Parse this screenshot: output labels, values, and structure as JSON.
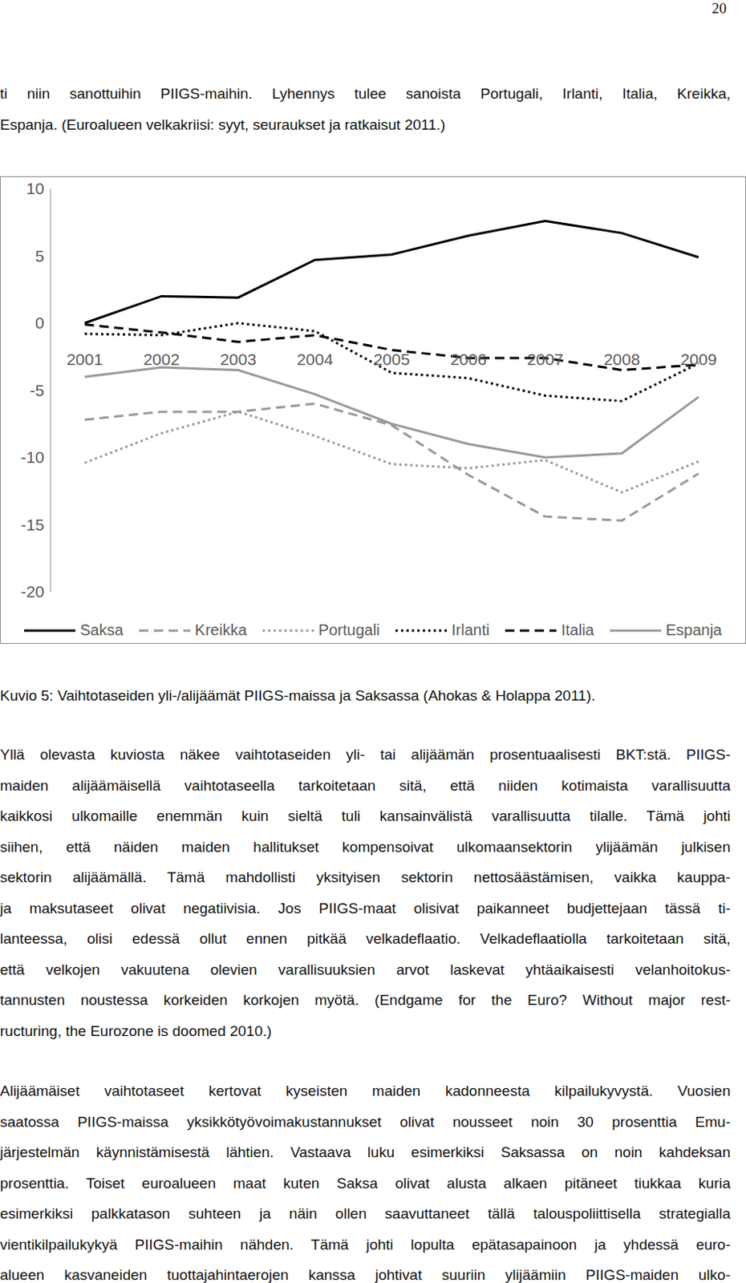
{
  "page_number": "20",
  "intro": [
    "ti niin sanottuihin PIIGS-maihin. Lyhennys tulee sanoista Portugali, Irlanti, Italia, Kreikka,",
    "Espanja. (Euroalueen velkakriisi: syyt, seuraukset ja ratkaisut 2011.)"
  ],
  "chart_data": {
    "type": "line",
    "categories": [
      "2001",
      "2002",
      "2003",
      "2004",
      "2005",
      "2006",
      "2007",
      "2008",
      "2009"
    ],
    "ylim": [
      -20,
      10
    ],
    "yticks": [
      -20,
      -15,
      -10,
      -5,
      0,
      5,
      10
    ],
    "grid": false,
    "legend": "bottom",
    "series": [
      {
        "name": "Saksa",
        "color": "#000000",
        "line_style": "solid",
        "values": [
          0,
          2.0,
          1.9,
          4.7,
          5.1,
          6.5,
          7.6,
          6.7,
          4.9
        ]
      },
      {
        "name": "Kreikka",
        "color": "#999999",
        "line_style": "dashed",
        "values": [
          -7.2,
          -6.6,
          -6.6,
          -6.0,
          -7.6,
          -11.3,
          -14.4,
          -14.7,
          -11.2
        ]
      },
      {
        "name": "Portugali",
        "color": "#999999",
        "line_style": "dotted",
        "values": [
          -10.4,
          -8.2,
          -6.6,
          -8.4,
          -10.5,
          -10.8,
          -10.2,
          -12.6,
          -10.3
        ]
      },
      {
        "name": "Irlanti",
        "color": "#000000",
        "line_style": "dotted",
        "values": [
          -0.8,
          -0.9,
          0.0,
          -0.6,
          -3.7,
          -4.1,
          -5.4,
          -5.8,
          -3.0
        ]
      },
      {
        "name": "Italia",
        "color": "#000000",
        "line_style": "dashed",
        "values": [
          -0.1,
          -0.7,
          -1.4,
          -0.9,
          -2.0,
          -2.6,
          -2.6,
          -3.5,
          -3.1
        ]
      },
      {
        "name": "Espanja",
        "color": "#999999",
        "line_style": "solid",
        "values": [
          -4.0,
          -3.3,
          -3.5,
          -5.3,
          -7.5,
          -9.0,
          -10.0,
          -9.7,
          -5.5
        ]
      }
    ]
  },
  "caption": "Kuvio 5: Vaihtotaseiden yli-/alijäämät PIIGS-maissa ja Saksassa (Ahokas & Holappa 2011).",
  "body": [
    [
      "Yllä olevasta kuviosta näkee vaihtotaseiden yli- tai alijäämän prosentuaalisesti BKT:stä. PIIGS-",
      "maiden alijäämäisellä vaihtotaseella tarkoitetaan sitä, että niiden kotimaista varallisuutta",
      "kaikkosi ulkomaille enemmän kuin sieltä tuli kansainvälistä varallisuutta tilalle. Tämä johti",
      "siihen, että näiden maiden hallitukset kompensoivat ulkomaansektorin ylijäämän julkisen",
      "sektorin alijäämällä. Tämä mahdollisti yksityisen sektorin nettosäästämisen, vaikka kauppa-",
      "ja maksutaseet olivat negatiivisia. Jos PIIGS-maat olisivat paikanneet budjettejaan tässä ti-",
      "lanteessa, olisi edessä ollut ennen pitkää velkadeflaatio. Velkadeflaatiolla tarkoitetaan sitä,",
      "että velkojen vakuutena olevien varallisuuksien arvot laskevat yhtäaikaisesti velanhoitokus-",
      "tannusten noustessa korkeiden korkojen myötä. (Endgame for the Euro? Without major rest-",
      "ructuring, the Eurozone is doomed 2010.)"
    ],
    [
      "Alijäämäiset vaihtotaseet kertovat kyseisten maiden kadonneesta kilpailukyvystä. Vuosien",
      "saatossa PIIGS-maissa yksikkötyövoimakustannukset olivat nousseet noin 30 prosenttia Emu-",
      "järjestelmän käynnistämisestä lähtien. Vastaava luku esimerkiksi Saksassa on noin kahdeksan",
      "prosenttia. Toiset euroalueen maat kuten Saksa olivat alusta alkaen pitäneet tiukkaa kuria",
      "esimerkiksi palkkatason suhteen ja näin ollen saavuttaneet tällä talouspoliittisella strategialla",
      "vientikilpailukykyä PIIGS-maihin nähden. Tämä johti lopulta epätasapainoon ja yhdessä euro-",
      "alueen kasvaneiden tuottajahintaerojen kanssa johtivat suuriin ylijäämiin PIIGS-maiden ulko-"
    ]
  ]
}
